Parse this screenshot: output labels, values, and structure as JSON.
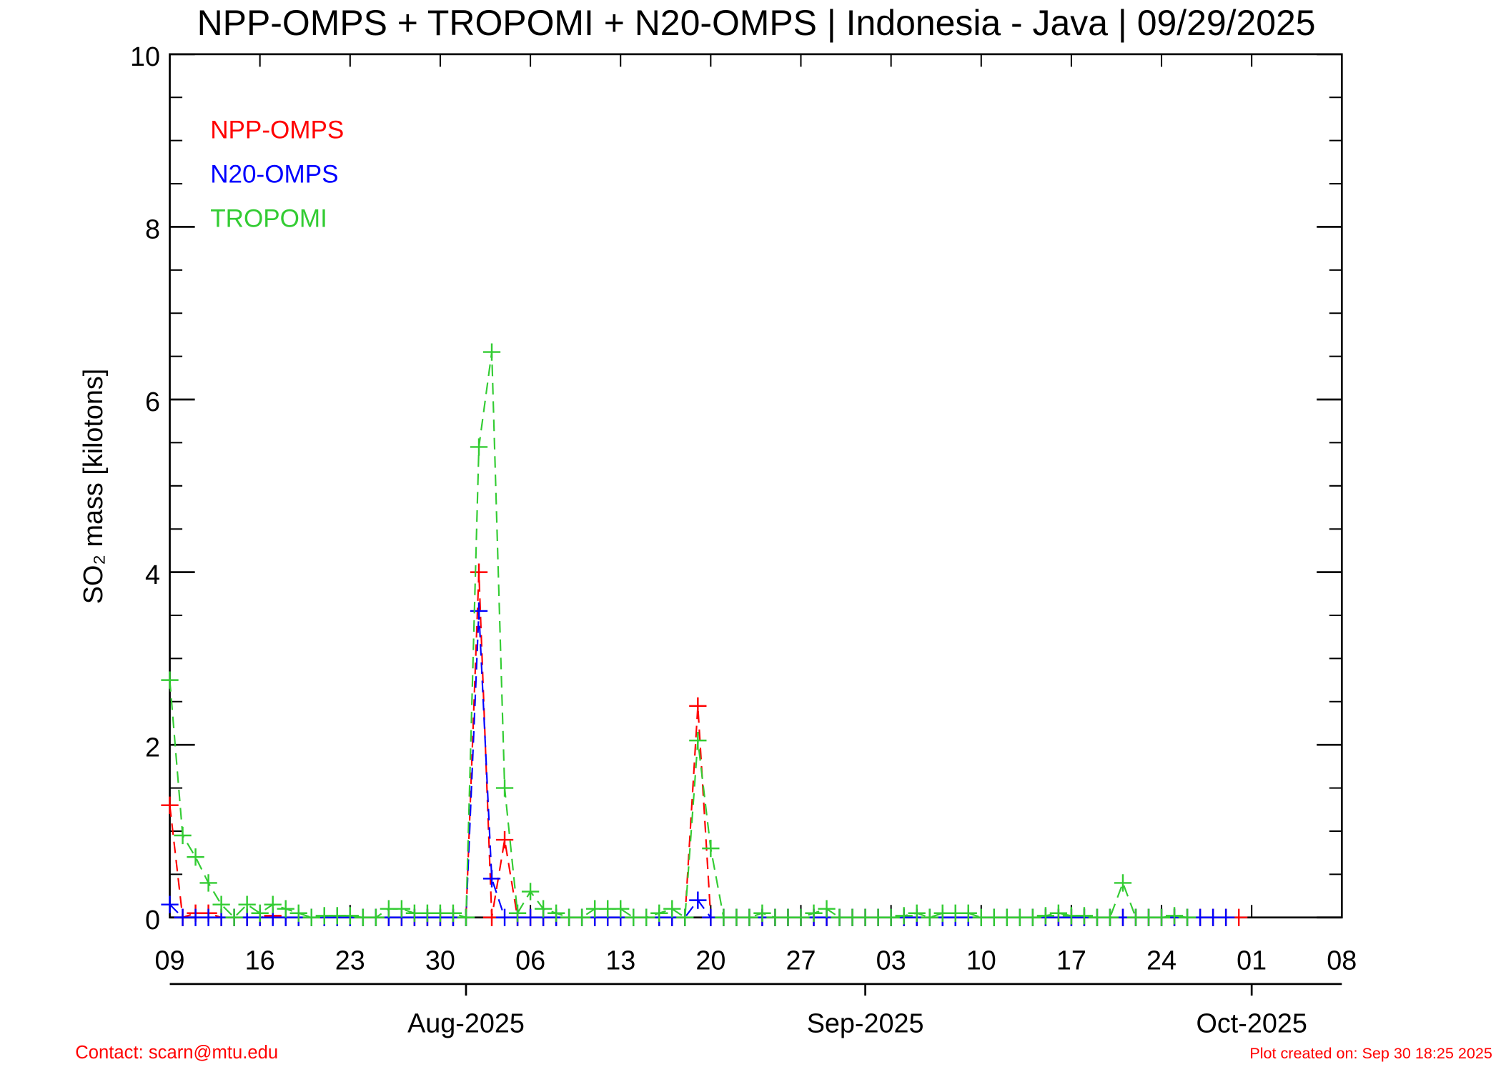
{
  "chart_data": {
    "type": "line",
    "title": "NPP-OMPS + TROPOMI + N20-OMPS | Indonesia - Java | 09/29/2025",
    "y_label": "SO₂ mass [kilotons]",
    "x": [
      "2025-07-09",
      "2025-07-10",
      "2025-07-11",
      "2025-07-12",
      "2025-07-13",
      "2025-07-14",
      "2025-07-15",
      "2025-07-16",
      "2025-07-17",
      "2025-07-18",
      "2025-07-19",
      "2025-07-20",
      "2025-07-21",
      "2025-07-22",
      "2025-07-23",
      "2025-07-24",
      "2025-07-25",
      "2025-07-26",
      "2025-07-27",
      "2025-07-28",
      "2025-07-29",
      "2025-07-30",
      "2025-07-31",
      "2025-08-01",
      "2025-08-02",
      "2025-08-03",
      "2025-08-04",
      "2025-08-05",
      "2025-08-06",
      "2025-08-07",
      "2025-08-08",
      "2025-08-09",
      "2025-08-10",
      "2025-08-11",
      "2025-08-12",
      "2025-08-13",
      "2025-08-14",
      "2025-08-15",
      "2025-08-16",
      "2025-08-17",
      "2025-08-18",
      "2025-08-19",
      "2025-08-20",
      "2025-08-21",
      "2025-08-22",
      "2025-08-23",
      "2025-08-24",
      "2025-08-25",
      "2025-08-26",
      "2025-08-27",
      "2025-08-28",
      "2025-08-29",
      "2025-08-30",
      "2025-08-31",
      "2025-09-01",
      "2025-09-02",
      "2025-09-03",
      "2025-09-04",
      "2025-09-05",
      "2025-09-06",
      "2025-09-07",
      "2025-09-08",
      "2025-09-09",
      "2025-09-10",
      "2025-09-11",
      "2025-09-12",
      "2025-09-13",
      "2025-09-14",
      "2025-09-15",
      "2025-09-16",
      "2025-09-17",
      "2025-09-18",
      "2025-09-19",
      "2025-09-20",
      "2025-09-21",
      "2025-09-22",
      "2025-09-23",
      "2025-09-24",
      "2025-09-25",
      "2025-09-26",
      "2025-09-27",
      "2025-09-28",
      "2025-09-29",
      "2025-09-30"
    ],
    "series": [
      {
        "name": "NPP-OMPS",
        "color": "#ff0000",
        "values": [
          1.3,
          0,
          0.05,
          0.05,
          0,
          0,
          0,
          0,
          0.02,
          0,
          0,
          0,
          0,
          0,
          0,
          0,
          0,
          0,
          0,
          0,
          0,
          0,
          0,
          0,
          4.0,
          0,
          0.9,
          0,
          0,
          0,
          0,
          0,
          0,
          0,
          0,
          0,
          0,
          0,
          0,
          0,
          0,
          2.45,
          0,
          0,
          0,
          0,
          0,
          0,
          0,
          0,
          0,
          0,
          0,
          0,
          0,
          0,
          0,
          0,
          0,
          0,
          0,
          0,
          0,
          0,
          0,
          0,
          0,
          0,
          0,
          0,
          0,
          0,
          0,
          0,
          0,
          0,
          0,
          0,
          0,
          0,
          0,
          0,
          0,
          0
        ]
      },
      {
        "name": "N20-OMPS",
        "color": "#0000ff",
        "values": [
          0.15,
          0,
          0,
          0,
          0,
          0,
          0,
          0,
          0,
          0,
          0,
          0,
          0,
          0,
          0,
          0,
          0,
          0,
          0,
          0,
          0,
          0,
          0,
          0,
          3.55,
          0.45,
          0,
          0,
          0,
          0,
          0,
          0,
          0,
          0,
          0,
          0,
          0,
          0,
          0,
          0,
          0,
          0.2,
          0,
          0,
          0,
          0,
          0,
          0,
          0,
          0,
          0,
          0,
          0,
          0,
          0,
          0,
          0,
          0,
          0,
          0,
          0,
          0,
          0,
          0,
          0,
          0,
          0,
          0,
          0,
          0,
          0,
          0,
          0,
          0,
          0,
          0,
          0,
          0,
          0,
          0,
          0,
          0,
          0,
          null
        ]
      },
      {
        "name": "TROPOMI",
        "color": "#33cc33",
        "values": [
          2.75,
          0.95,
          0.7,
          0.4,
          0.15,
          0,
          0.15,
          0.05,
          0.15,
          0.1,
          0.05,
          0,
          0.02,
          0.02,
          0.02,
          0,
          0,
          0.1,
          0.1,
          0.05,
          0.05,
          0.05,
          0.05,
          0,
          5.45,
          6.55,
          1.5,
          0.05,
          0.3,
          0.1,
          0.05,
          0,
          0,
          0.1,
          0.1,
          0.1,
          0,
          0,
          0.05,
          0.1,
          0,
          2.05,
          0.8,
          0,
          0,
          0,
          0.05,
          0,
          0,
          0,
          0.05,
          0.1,
          0,
          0,
          0,
          0,
          0,
          0.02,
          0.05,
          0,
          0.05,
          0.05,
          0.05,
          0,
          0,
          0,
          0,
          0,
          0.02,
          0.05,
          0.02,
          0.02,
          0,
          0,
          0.4,
          0,
          0,
          0,
          0.02,
          0,
          null,
          null,
          null,
          null
        ]
      }
    ],
    "xlim": [
      "2025-07-09",
      "2025-10-08"
    ],
    "xticks": [
      {
        "value": "2025-07-09",
        "label": "09"
      },
      {
        "value": "2025-07-16",
        "label": "16"
      },
      {
        "value": "2025-07-23",
        "label": "23"
      },
      {
        "value": "2025-07-30",
        "label": "30"
      },
      {
        "value": "2025-08-06",
        "label": "06"
      },
      {
        "value": "2025-08-13",
        "label": "13"
      },
      {
        "value": "2025-08-20",
        "label": "20"
      },
      {
        "value": "2025-08-27",
        "label": "27"
      },
      {
        "value": "2025-09-03",
        "label": "03"
      },
      {
        "value": "2025-09-10",
        "label": "10"
      },
      {
        "value": "2025-09-17",
        "label": "17"
      },
      {
        "value": "2025-09-24",
        "label": "24"
      },
      {
        "value": "2025-10-01",
        "label": "01"
      },
      {
        "value": "2025-10-08",
        "label": "08"
      }
    ],
    "month_ticks": [
      {
        "value": "2025-08-01",
        "label": "Aug-2025"
      },
      {
        "value": "2025-09-01",
        "label": "Sep-2025"
      },
      {
        "value": "2025-10-01",
        "label": "Oct-2025"
      }
    ],
    "ylim": [
      0,
      10
    ],
    "yticks": [
      0,
      2,
      4,
      6,
      8,
      10
    ],
    "yminorticks": [
      0.5,
      1,
      1.5,
      2.5,
      3,
      3.5,
      4.5,
      5,
      5.5,
      6.5,
      7,
      7.5,
      8.5,
      9,
      9.5
    ],
    "legend": "upper left",
    "marker": "plus",
    "linestyle": "dashed",
    "footer_left": "Contact: scarn@mtu.edu",
    "footer_right": "Plot created on: Sep 30 18:25 2025"
  }
}
